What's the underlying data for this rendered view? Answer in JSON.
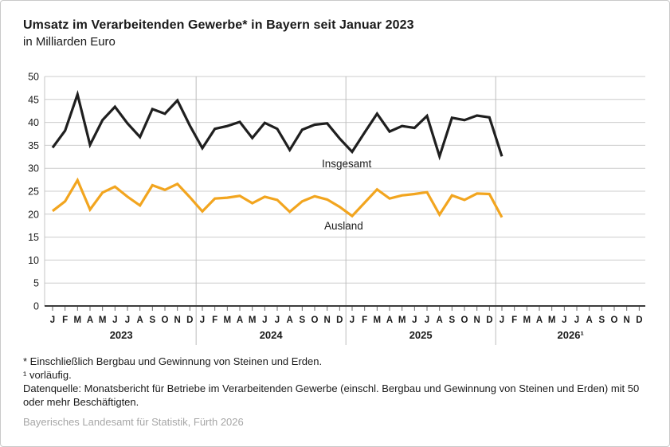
{
  "header": {
    "title": "Umsatz im Verarbeitenden Gewerbe* in Bayern seit Januar 2023",
    "subtitle": "in Milliarden Euro"
  },
  "chart_data": {
    "type": "line",
    "title": "Umsatz im Verarbeitenden Gewerbe* in Bayern seit Januar 2023",
    "ylabel": "in Milliarden Euro",
    "ylim": [
      0,
      50
    ],
    "y_ticks": [
      0,
      5,
      10,
      15,
      20,
      25,
      30,
      35,
      40,
      45,
      50
    ],
    "grid": true,
    "legend_position": "labels-next-to-lines",
    "month_letters": [
      "J",
      "F",
      "M",
      "A",
      "M",
      "J",
      "J",
      "A",
      "S",
      "O",
      "N",
      "D"
    ],
    "years": [
      "2023",
      "2024",
      "2025",
      "2026¹"
    ],
    "months_shown_total": 48,
    "series": [
      {
        "name": "Insgesamt",
        "color": "#1f1f1f",
        "values": [
          34.5,
          38.2,
          46.1,
          35.1,
          40.5,
          43.4,
          39.8,
          36.8,
          42.9,
          41.9,
          44.8,
          39.3,
          34.4,
          38.6,
          39.2,
          40.1,
          36.6,
          39.9,
          38.6,
          34.0,
          38.4,
          39.5,
          39.8,
          36.5,
          33.6,
          37.8,
          41.9,
          38.0,
          39.2,
          38.8,
          41.4,
          32.6,
          41.0,
          40.5,
          41.5,
          41.1,
          32.6
        ]
      },
      {
        "name": "Ausland",
        "color": "#f2a51f",
        "values": [
          20.7,
          22.8,
          27.4,
          21.0,
          24.7,
          26.0,
          23.8,
          21.9,
          26.3,
          25.3,
          26.6,
          23.7,
          20.6,
          23.4,
          23.6,
          24.0,
          22.4,
          23.8,
          23.1,
          20.5,
          22.8,
          23.9,
          23.2,
          21.6,
          19.6,
          22.5,
          25.4,
          23.4,
          24.1,
          24.4,
          24.8,
          19.9,
          24.1,
          23.1,
          24.5,
          24.4,
          19.3
        ]
      }
    ]
  },
  "footnotes": {
    "star": "* Einschließlich Bergbau und Gewinnung von Steinen und Erden.",
    "one": "¹ vorläufig.",
    "datasource": "Datenquelle: Monatsbericht für Betriebe im Verarbeitenden Gewerbe (einschl. Bergbau und Gewinnung von Steinen und Erden) mit 50 oder mehr Beschäftigten."
  },
  "source": "Bayerisches Landesamt für Statistik, Fürth 2026"
}
